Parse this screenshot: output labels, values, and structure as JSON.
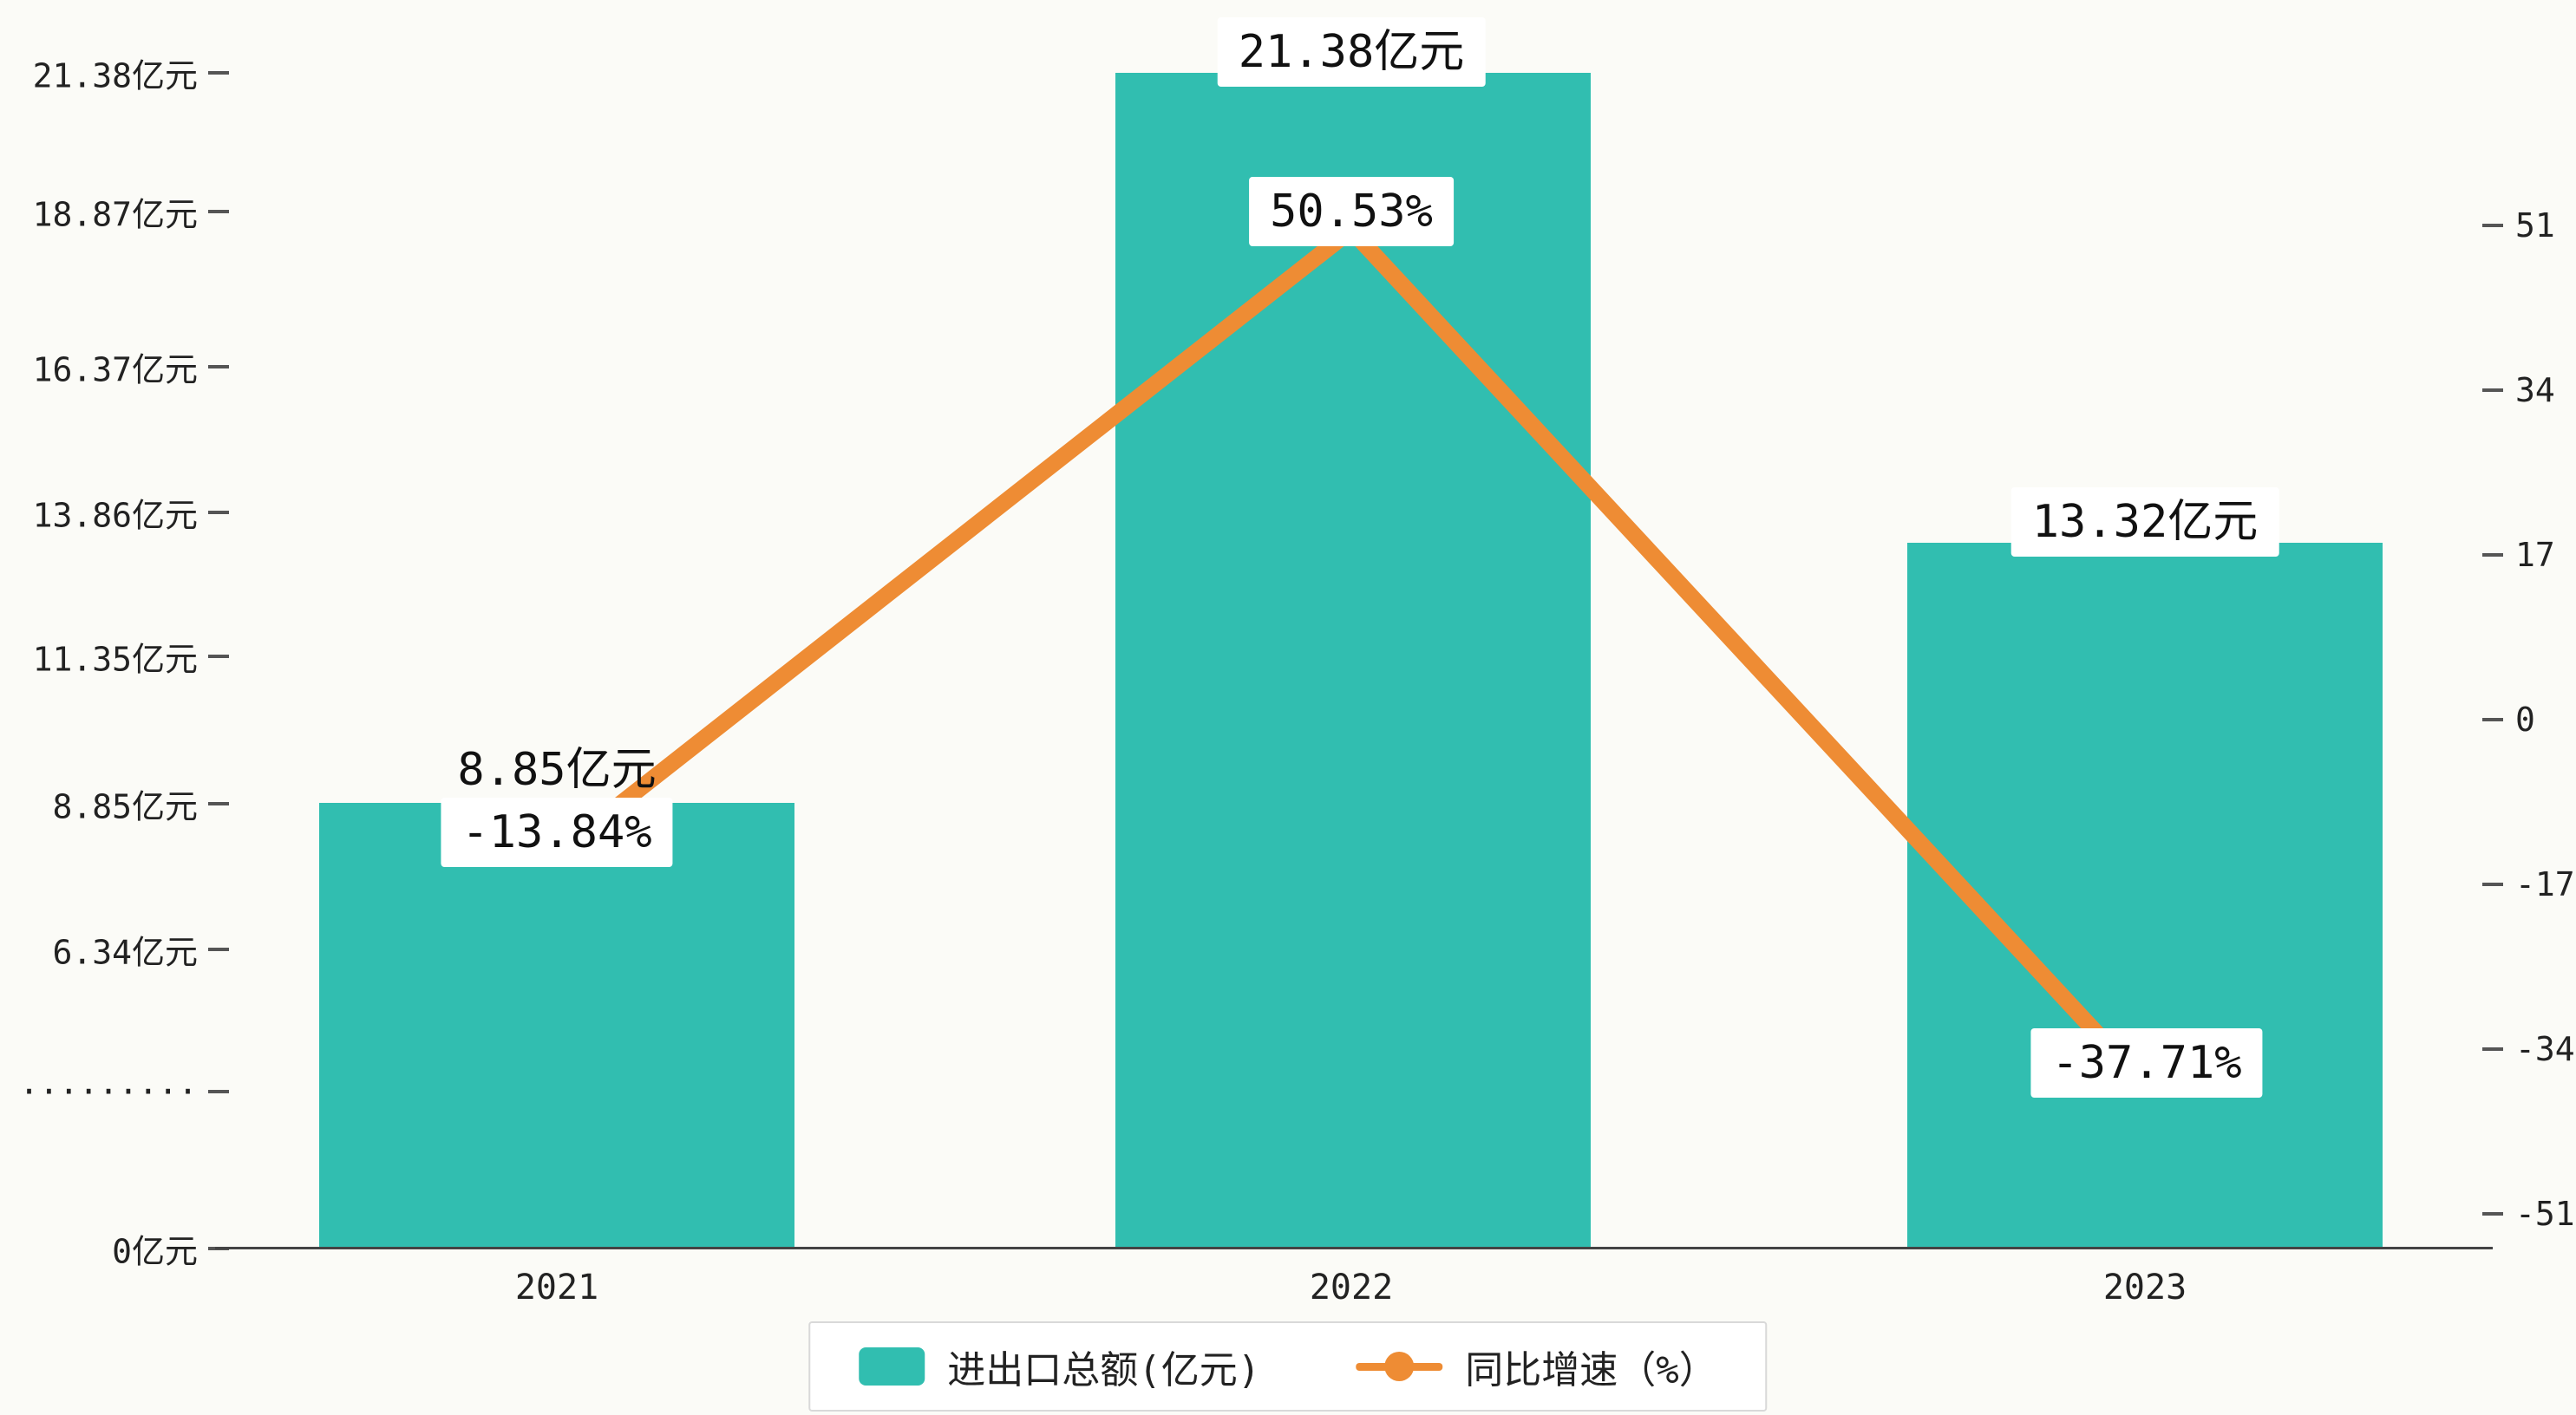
{
  "colors": {
    "background": "#fbfbf7",
    "bar": "#31beb0",
    "line": "#ee8c34",
    "label_box_bg": "#ffffff",
    "axis_text": "#222222"
  },
  "chart_data": {
    "type": "bar",
    "subtype": "bar-and-line combo, dual y-axis",
    "categories": [
      "2021",
      "2022",
      "2023"
    ],
    "series": [
      {
        "name": "进出口总额(亿元)",
        "type": "bar",
        "axis": "left",
        "unit": "亿元",
        "values": [
          8.85,
          21.38,
          13.32
        ],
        "data_labels": [
          "8.85亿元",
          "21.38亿元",
          "13.32亿元"
        ],
        "color": "#31beb0"
      },
      {
        "name": "同比增速（%）",
        "type": "line",
        "axis": "right",
        "unit": "%",
        "values": [
          -13.84,
          50.53,
          -37.71
        ],
        "data_labels": [
          "-13.84%",
          "50.53%",
          "-37.71%"
        ],
        "color": "#ee8c34"
      }
    ],
    "left_axis": {
      "ticks": [
        "21.38亿元",
        "18.87亿元",
        "16.37亿元",
        "13.86亿元",
        "11.35亿元",
        "8.85亿元",
        "6.34亿元",
        "·········",
        "0亿元"
      ],
      "note": "axis break between 6.34 and 0"
    },
    "right_axis": {
      "ticks": [
        "51",
        "34",
        "17",
        "0",
        "-17",
        "-34",
        "-51"
      ],
      "range": [
        -51,
        51
      ],
      "step": 17
    },
    "legend": {
      "items": [
        {
          "label": "进出口总额(亿元)"
        },
        {
          "label": "同比增速（%）"
        }
      ],
      "position": "bottom"
    },
    "grid": false,
    "title": ""
  }
}
